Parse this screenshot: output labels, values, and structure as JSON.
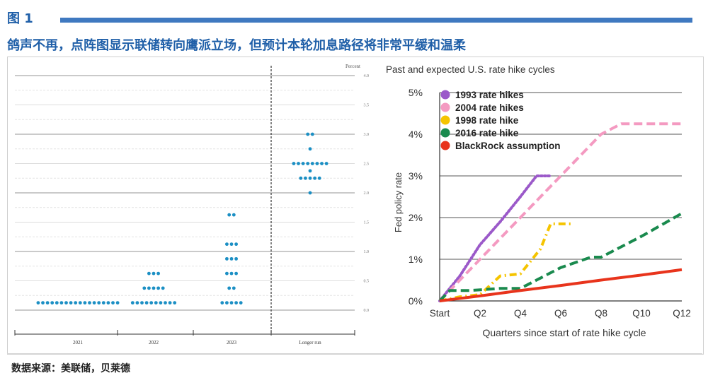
{
  "header": {
    "figure_label": "图 1",
    "headline": "鸽声不再，点阵图显示联储转向鹰派立场，但预计本轮加息路径将非常平缓和温柔"
  },
  "footer": {
    "source": "数据来源：美联储，贝莱德"
  },
  "colors": {
    "title_blue": "#1f5fa8",
    "rule_blue": "#3f79c0",
    "dot_blue": "#1b8fc4"
  },
  "chart_data": [
    {
      "type": "scatter",
      "title": "",
      "ylabel": "Percent",
      "ylim": [
        0,
        4.0
      ],
      "y_ticks": [
        "4.0",
        "3.5",
        "3.0",
        "2.5",
        "2.0",
        "1.5",
        "1.0",
        "0.5",
        "0.0"
      ],
      "categories": [
        "2021",
        "2022",
        "2023",
        "Longer run"
      ],
      "points": [
        {
          "category": "2021",
          "y": 0.125,
          "count": 18
        },
        {
          "category": "2022",
          "y": 0.125,
          "count": 10
        },
        {
          "category": "2022",
          "y": 0.375,
          "count": 5
        },
        {
          "category": "2022",
          "y": 0.625,
          "count": 3
        },
        {
          "category": "2023",
          "y": 0.125,
          "count": 5
        },
        {
          "category": "2023",
          "y": 0.375,
          "count": 2
        },
        {
          "category": "2023",
          "y": 0.625,
          "count": 3
        },
        {
          "category": "2023",
          "y": 0.875,
          "count": 3
        },
        {
          "category": "2023",
          "y": 1.125,
          "count": 3
        },
        {
          "category": "2023",
          "y": 1.625,
          "count": 2
        },
        {
          "category": "Longer run",
          "y": 2.0,
          "count": 1
        },
        {
          "category": "Longer run",
          "y": 2.25,
          "count": 5
        },
        {
          "category": "Longer run",
          "y": 2.375,
          "count": 1
        },
        {
          "category": "Longer run",
          "y": 2.5,
          "count": 8
        },
        {
          "category": "Longer run",
          "y": 2.75,
          "count": 1
        },
        {
          "category": "Longer run",
          "y": 3.0,
          "count": 2
        }
      ]
    },
    {
      "type": "line",
      "title": "Past and expected U.S. rate hike cycles",
      "xlabel": "Quarters since start of rate hike cycle",
      "ylabel": "Fed policy rate",
      "xlim": [
        0,
        12
      ],
      "ylim": [
        0,
        5
      ],
      "x_tick_labels": [
        "Start",
        "Q2",
        "Q4",
        "Q6",
        "Q8",
        "Q10",
        "Q12"
      ],
      "x_tick_values": [
        0,
        2,
        4,
        6,
        8,
        10,
        12
      ],
      "y_tick_labels": [
        "0%",
        "1%",
        "2%",
        "3%",
        "4%",
        "5%"
      ],
      "y_tick_values": [
        0,
        1,
        2,
        3,
        4,
        5
      ],
      "legend_position": "top-left",
      "series": [
        {
          "name": "1993 rate hikes",
          "color": "#9b59c9",
          "style": "dotted",
          "x": [
            0,
            1,
            2,
            3,
            4,
            4.8,
            5.5
          ],
          "y": [
            0,
            0.6,
            1.35,
            1.9,
            2.5,
            3.0,
            3.0
          ]
        },
        {
          "name": "2004 rate hikes",
          "color": "#f49ac1",
          "style": "dashed",
          "x": [
            0,
            2,
            4,
            6,
            8,
            9,
            10,
            12
          ],
          "y": [
            0,
            1.0,
            2.0,
            3.0,
            4.0,
            4.25,
            4.25,
            4.25
          ]
        },
        {
          "name": "1998 rate hike",
          "color": "#f5c400",
          "style": "dashdot",
          "x": [
            0,
            1,
            2,
            3,
            4,
            5,
            5.5,
            6.5
          ],
          "y": [
            0,
            0.1,
            0.15,
            0.6,
            0.65,
            1.25,
            1.85,
            1.85
          ]
        },
        {
          "name": "2016 rate hike",
          "color": "#1a8a4e",
          "style": "dashed",
          "x": [
            0,
            0.5,
            1.5,
            3,
            4,
            6,
            7.5,
            8,
            10,
            12
          ],
          "y": [
            0,
            0.25,
            0.25,
            0.3,
            0.3,
            0.8,
            1.05,
            1.05,
            1.55,
            2.1
          ]
        },
        {
          "name": "BlackRock assumption",
          "color": "#e8341c",
          "style": "solid",
          "x": [
            0,
            2,
            4,
            6,
            8,
            10,
            12
          ],
          "y": [
            0,
            0.12,
            0.25,
            0.37,
            0.5,
            0.62,
            0.75
          ]
        }
      ]
    }
  ]
}
